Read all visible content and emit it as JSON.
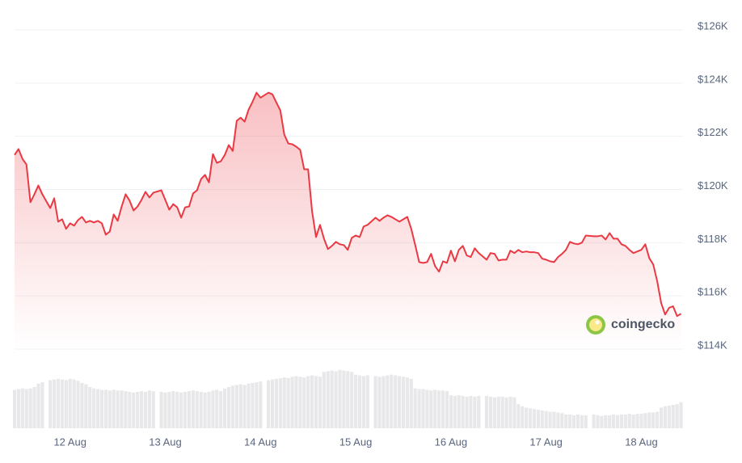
{
  "chart_data": {
    "type": "line",
    "color": "#ea3943",
    "volume_color": "#e8e8ea",
    "grid": true,
    "y_axis_side": "right",
    "watermark": "coingecko",
    "x": [
      10,
      11,
      12,
      13,
      14,
      15,
      16,
      17,
      19,
      20,
      21,
      22,
      23,
      24,
      25,
      26,
      27,
      28,
      29,
      30,
      31,
      32,
      33,
      34,
      35,
      36,
      37,
      38,
      39,
      40,
      41,
      42,
      43,
      44,
      45,
      47,
      48,
      49,
      50,
      51,
      52,
      53,
      54,
      55,
      56,
      57,
      58,
      59,
      60,
      61,
      62,
      63,
      64,
      65,
      66,
      67,
      68,
      69,
      70,
      71,
      72,
      74,
      75,
      76,
      77,
      78,
      79,
      80,
      81,
      82,
      83,
      84,
      85,
      86,
      87,
      88,
      89,
      90,
      91,
      92,
      93,
      94,
      95,
      96,
      97,
      98,
      99,
      101,
      102,
      103,
      104,
      105,
      106,
      107,
      108,
      109,
      110,
      111,
      112,
      113,
      114,
      115,
      116,
      117,
      118,
      119,
      120,
      121,
      122,
      123,
      124,
      125,
      126,
      127,
      129,
      130,
      131,
      132,
      133,
      134,
      135,
      136,
      137,
      138,
      139,
      140,
      141,
      142,
      143,
      144,
      145,
      146,
      147,
      148,
      149,
      150,
      151,
      152,
      153,
      154,
      156,
      157,
      158,
      159,
      160,
      161,
      162,
      163,
      164,
      165,
      166,
      167,
      168,
      169,
      170,
      171,
      172,
      173,
      174,
      175,
      176,
      177,
      178
    ],
    "values": [
      121300,
      121520,
      121150,
      120940,
      119520,
      119820,
      120150,
      119820,
      119300,
      119670,
      118790,
      118880,
      118520,
      118730,
      118640,
      118850,
      118970,
      118760,
      118820,
      118760,
      118820,
      118730,
      118300,
      118420,
      119060,
      118820,
      119360,
      119820,
      119580,
      119210,
      119360,
      119610,
      119910,
      119700,
      119880,
      119970,
      119610,
      119240,
      119450,
      119330,
      118940,
      119330,
      119360,
      119850,
      119970,
      120390,
      120550,
      120270,
      121330,
      121000,
      121060,
      121300,
      121670,
      121450,
      122580,
      122700,
      122550,
      123000,
      123300,
      123640,
      123450,
      123640,
      123580,
      123270,
      122970,
      122060,
      121730,
      121700,
      121610,
      121490,
      120760,
      120760,
      119180,
      118210,
      118670,
      118150,
      117760,
      117880,
      118030,
      117940,
      117910,
      117730,
      118180,
      118270,
      118210,
      118610,
      118670,
      118940,
      118820,
      118940,
      119030,
      118970,
      118880,
      118790,
      118880,
      118970,
      118520,
      117910,
      117270,
      117240,
      117270,
      117580,
      117120,
      116910,
      117300,
      117240,
      117700,
      117300,
      117730,
      117880,
      117520,
      117460,
      117790,
      117610,
      117360,
      117610,
      117580,
      117330,
      117360,
      117360,
      117700,
      117610,
      117730,
      117640,
      117670,
      117640,
      117640,
      117610,
      117400,
      117360,
      117300,
      117270,
      117460,
      117580,
      117730,
      118030,
      117970,
      117940,
      118000,
      118270,
      118240,
      118240,
      118270,
      118120,
      118360,
      118150,
      118150,
      117940,
      117880,
      117730,
      117610,
      117670,
      117730,
      117940,
      117420,
      117180,
      116550,
      115730,
      115300,
      115550,
      115610,
      115240,
      115330
    ],
    "volume": [
      56,
      57,
      58,
      57,
      58,
      60,
      65,
      67,
      70,
      71,
      72,
      71,
      70,
      72,
      71,
      69,
      66,
      64,
      60,
      58,
      57,
      56,
      56,
      55,
      56,
      55,
      55,
      54,
      53,
      52,
      53,
      54,
      53,
      55,
      54,
      53,
      52,
      53,
      54,
      53,
      52,
      53,
      54,
      55,
      54,
      53,
      52,
      53,
      55,
      56,
      54,
      58,
      60,
      62,
      63,
      64,
      63,
      65,
      66,
      67,
      68,
      70,
      71,
      72,
      73,
      74,
      73,
      75,
      76,
      75,
      74,
      76,
      77,
      76,
      75,
      82,
      83,
      84,
      83,
      85,
      84,
      83,
      82,
      78,
      77,
      76,
      77,
      76,
      75,
      76,
      77,
      78,
      77,
      76,
      75,
      74,
      72,
      58,
      57,
      57,
      56,
      55,
      56,
      55,
      55,
      54,
      48,
      47,
      48,
      47,
      46,
      47,
      46,
      47,
      47,
      46,
      45,
      46,
      46,
      45,
      46,
      45,
      35,
      32,
      30,
      29,
      28,
      27,
      26,
      25,
      24,
      24,
      23,
      22,
      20,
      20,
      19,
      20,
      19,
      19,
      20,
      19,
      18,
      19,
      19,
      20,
      19,
      20,
      20,
      21,
      20,
      21,
      21,
      22,
      23,
      23,
      24,
      30,
      32,
      33,
      34,
      35,
      38
    ],
    "volume_ylim": [
      0,
      100
    ],
    "xlim": [
      10,
      178.5
    ],
    "xticks": [
      {
        "value": 24,
        "label": "12 Aug"
      },
      {
        "value": 48,
        "label": "13 Aug"
      },
      {
        "value": 72,
        "label": "14 Aug"
      },
      {
        "value": 96,
        "label": "15 Aug"
      },
      {
        "value": 120,
        "label": "16 Aug"
      },
      {
        "value": 144,
        "label": "17 Aug"
      },
      {
        "value": 168,
        "label": "18 Aug"
      }
    ],
    "ylim": [
      114000,
      126000
    ],
    "yticks": [
      {
        "value": 114000,
        "label": "$114K"
      },
      {
        "value": 116000,
        "label": "$116K"
      },
      {
        "value": 118000,
        "label": "$118K"
      },
      {
        "value": 120000,
        "label": "$120K"
      },
      {
        "value": 122000,
        "label": "$122K"
      },
      {
        "value": 124000,
        "label": "$124K"
      },
      {
        "value": 126000,
        "label": "$126K"
      }
    ]
  }
}
